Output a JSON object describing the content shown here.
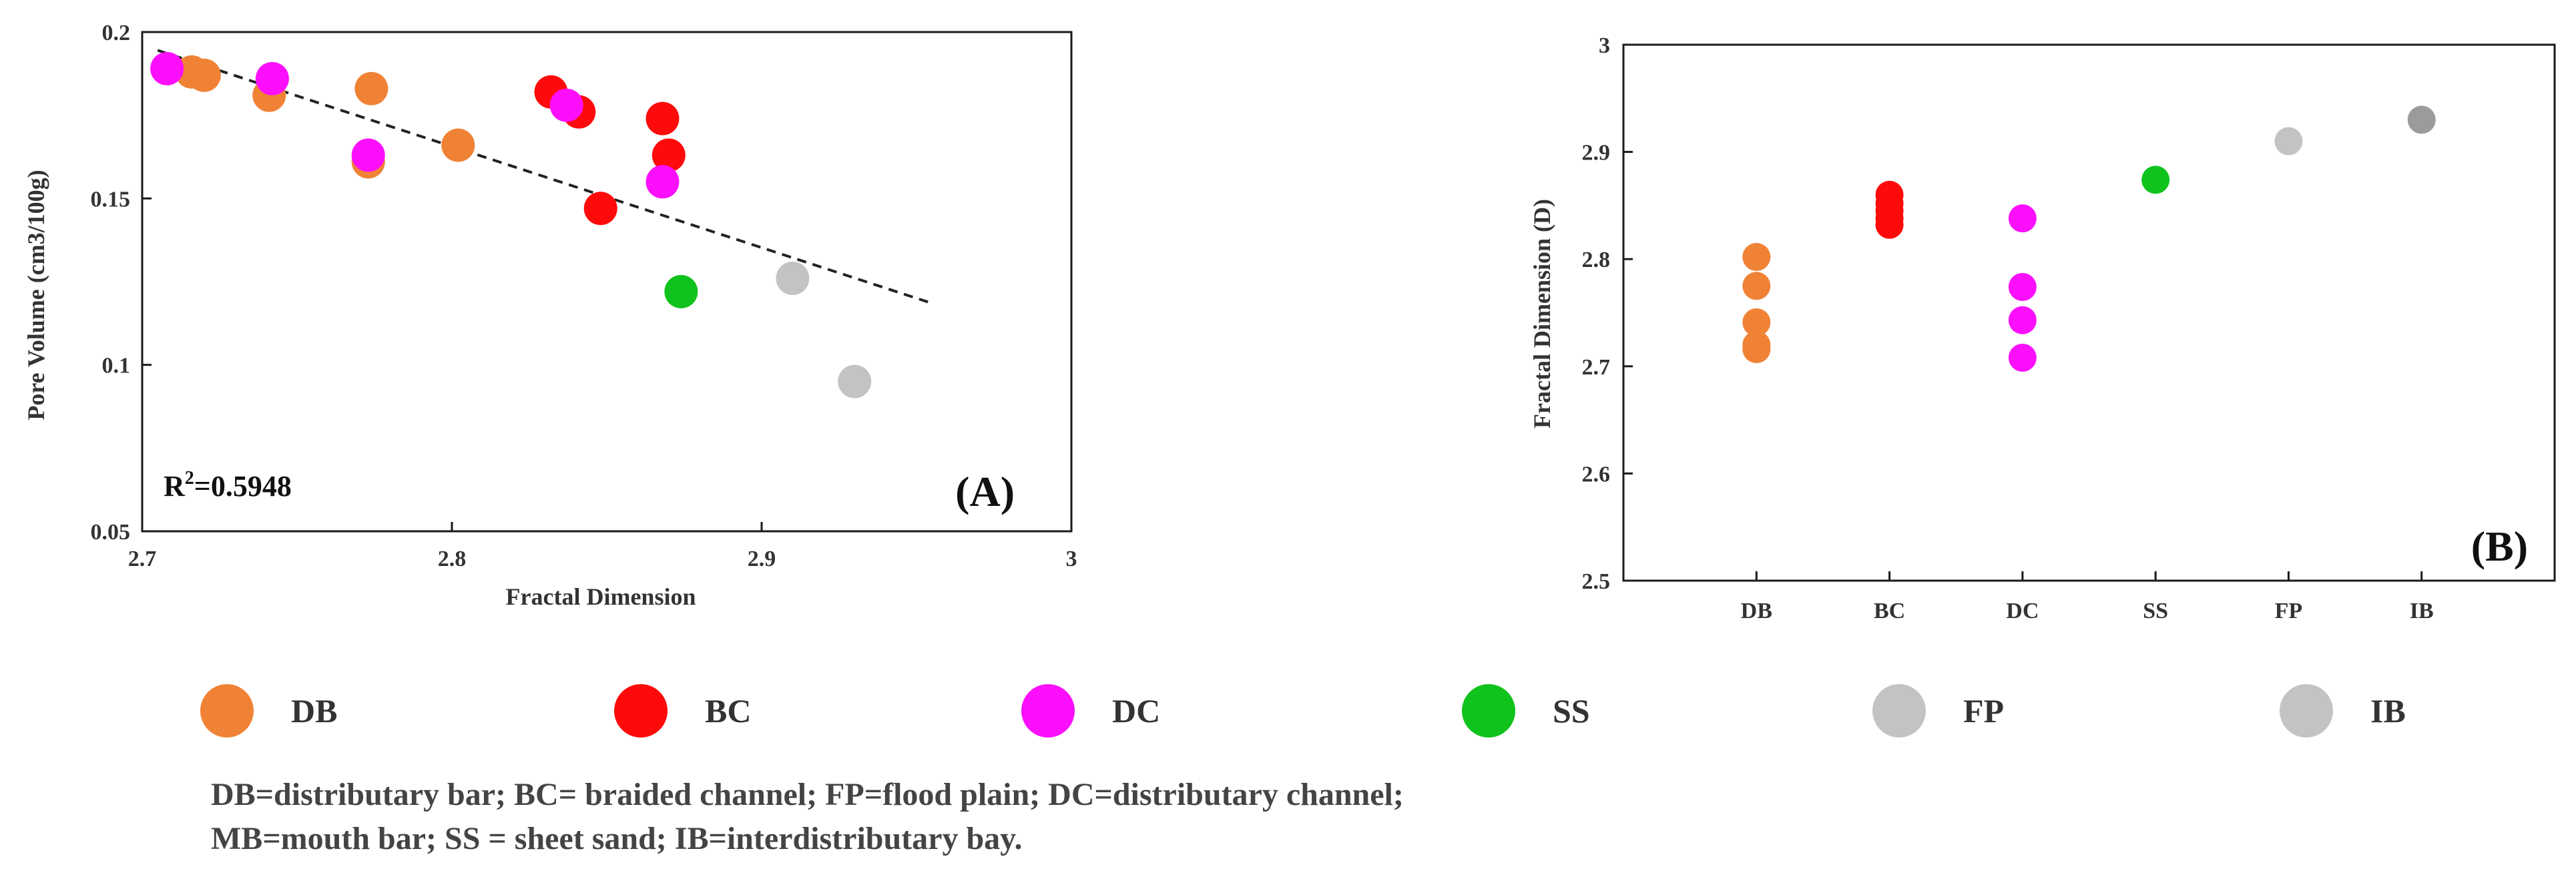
{
  "colors": {
    "DB": "#F08236",
    "BC": "#FE0A0A",
    "DC": "#FC0FFC",
    "SS": "#10C21C",
    "FP": "#C3C3C3",
    "IB": "#C3C3C3",
    "IB_panel_b": "#9B9B9B"
  },
  "chart_data": [
    {
      "id": "A",
      "type": "scatter",
      "panel_label": "(A)",
      "xlabel": "Fractal Dimension",
      "ylabel": "Pore Volume (cm3/100g)",
      "xlim": [
        2.7,
        3.0
      ],
      "ylim": [
        0.05,
        0.2
      ],
      "xticks": [
        "2.7",
        "2.8",
        "2.9",
        "3"
      ],
      "yticks": [
        "0.05",
        "0.1",
        "0.15",
        "0.2"
      ],
      "annotation": {
        "prefix": "R",
        "sup": "2",
        "suffix": "=0.5948"
      },
      "trendline": {
        "style": "dashed",
        "x": [
          2.705,
          2.955
        ],
        "y": [
          0.1945,
          0.1185
        ]
      },
      "series": [
        {
          "name": "DB",
          "points": [
            [
              2.716,
              0.188
            ],
            [
              2.72,
              0.187
            ],
            [
              2.741,
              0.181
            ],
            [
              2.774,
              0.183
            ],
            [
              2.773,
              0.161
            ],
            [
              2.802,
              0.166
            ]
          ]
        },
        {
          "name": "BC",
          "points": [
            [
              2.832,
              0.182
            ],
            [
              2.841,
              0.176
            ],
            [
              2.848,
              0.147
            ],
            [
              2.868,
              0.174
            ],
            [
              2.87,
              0.163
            ]
          ]
        },
        {
          "name": "DC",
          "points": [
            [
              2.708,
              0.189
            ],
            [
              2.742,
              0.186
            ],
            [
              2.773,
              0.163
            ],
            [
              2.837,
              0.178
            ],
            [
              2.868,
              0.155
            ]
          ]
        },
        {
          "name": "SS",
          "points": [
            [
              2.874,
              0.122
            ]
          ]
        },
        {
          "name": "FP",
          "points": [
            [
              2.91,
              0.126
            ]
          ]
        },
        {
          "name": "IB",
          "points": [
            [
              2.93,
              0.095
            ]
          ]
        }
      ]
    },
    {
      "id": "B",
      "type": "scatter",
      "panel_label": "(B)",
      "xlabel": "",
      "ylabel": "Fractal Dimension (D)",
      "categories": [
        "DB",
        "BC",
        "DC",
        "SS",
        "FP",
        "IB"
      ],
      "ylim": [
        2.5,
        3.0
      ],
      "yticks": [
        "2.5",
        "2.6",
        "2.7",
        "2.8",
        "2.9",
        "3"
      ],
      "series": [
        {
          "name": "DB",
          "values": [
            2.802,
            2.775,
            2.741,
            2.72,
            2.716
          ]
        },
        {
          "name": "BC",
          "values": [
            2.86,
            2.852,
            2.845,
            2.838,
            2.832
          ]
        },
        {
          "name": "DC",
          "values": [
            2.838,
            2.774,
            2.743,
            2.708
          ]
        },
        {
          "name": "SS",
          "values": [
            2.874
          ]
        },
        {
          "name": "FP",
          "values": [
            2.91
          ]
        },
        {
          "name": "IB",
          "values": [
            2.93
          ]
        }
      ]
    }
  ],
  "legend": [
    {
      "key": "DB",
      "label": "DB"
    },
    {
      "key": "BC",
      "label": "BC"
    },
    {
      "key": "DC",
      "label": "DC"
    },
    {
      "key": "SS",
      "label": "SS"
    },
    {
      "key": "FP",
      "label": "FP"
    },
    {
      "key": "IB",
      "label": "IB"
    }
  ],
  "caption": {
    "line1": "DB=distributary bar; BC= braided channel; FP=flood plain; DC=distributary channel;",
    "line2": "MB=mouth bar; SS = sheet sand; IB=interdistributary bay."
  }
}
